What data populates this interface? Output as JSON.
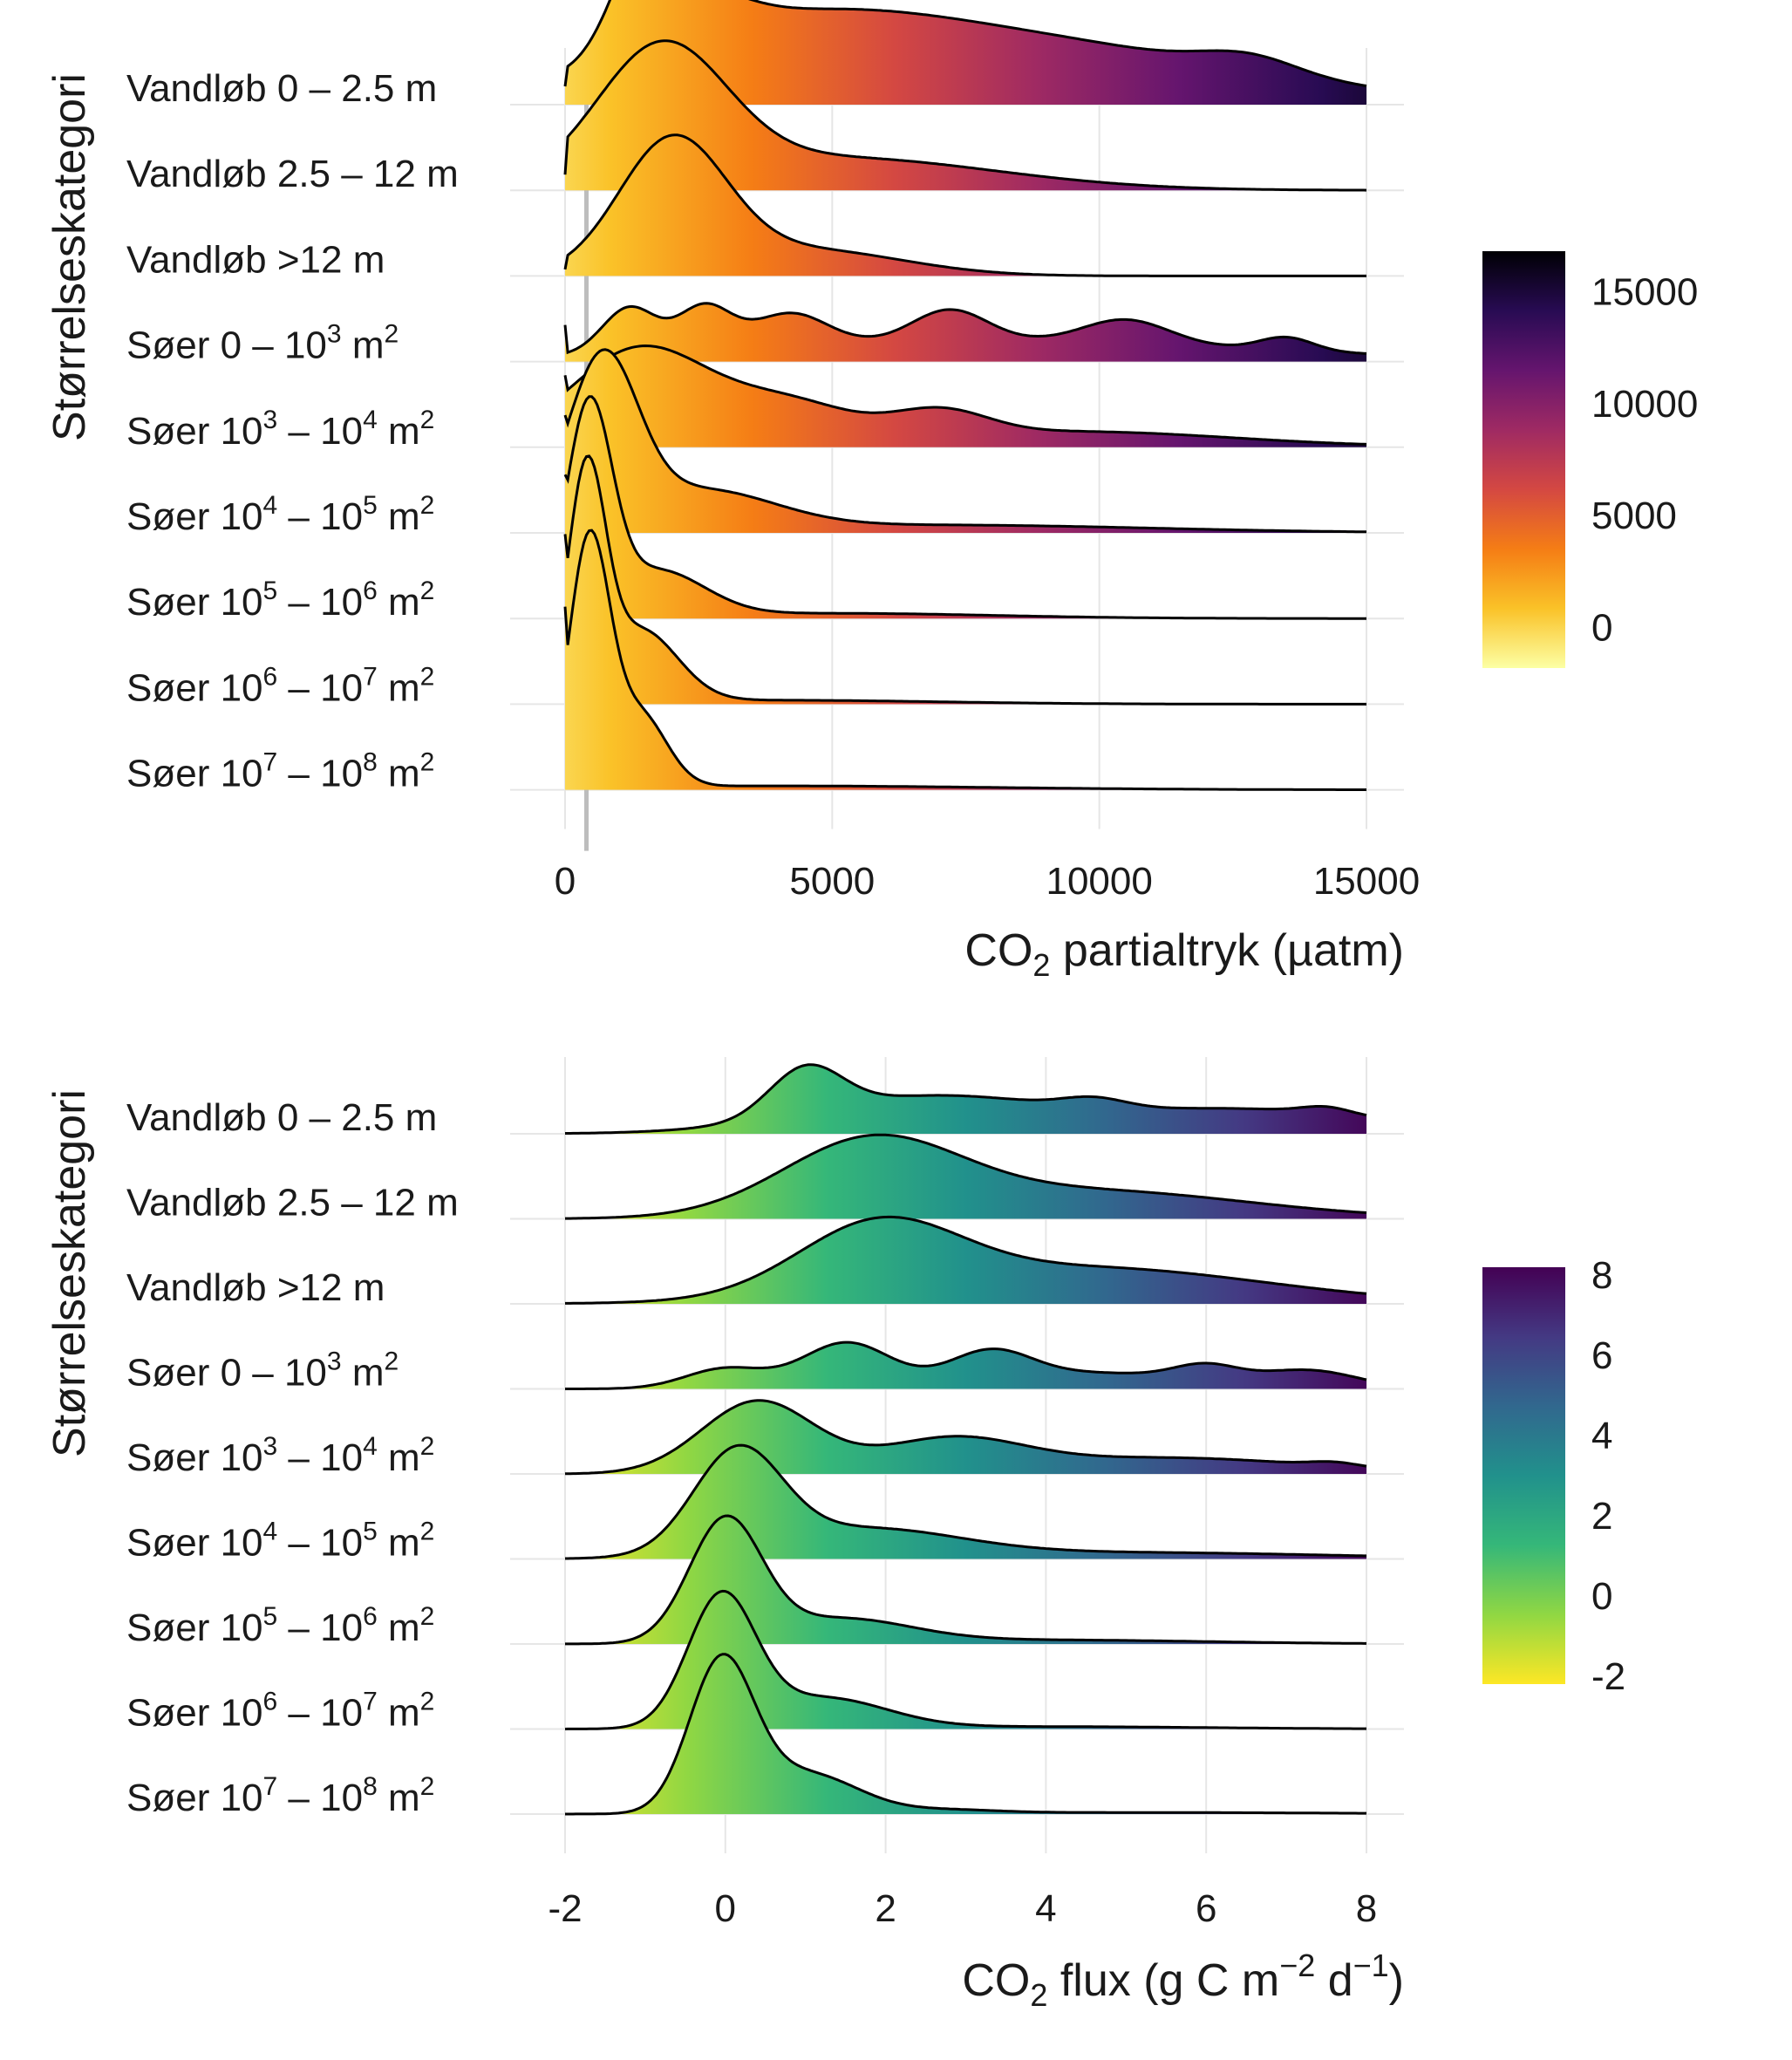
{
  "chart_data": [
    {
      "type": "ridgeline",
      "xlabel": "CO2 partialtryk (µatm)",
      "xlabel_main": "CO",
      "xlabel_sub": "2",
      "xlabel_rest": " partialtryk (µatm)",
      "ylabel": "Størrelseskategori",
      "xlim": [
        0,
        15000
      ],
      "xticks": [
        0,
        5000,
        10000,
        15000
      ],
      "xtick_labels": [
        "0",
        "5000",
        "10000",
        "15000"
      ],
      "vline_x": 400,
      "colorbar": {
        "palette": "inferno",
        "range": [
          -1800,
          16800
        ],
        "ticks": [
          0,
          5000,
          10000,
          15000
        ],
        "tick_labels": [
          "0",
          "5000",
          "10000",
          "15000"
        ],
        "stops": [
          "#fcffa4",
          "#fac228",
          "#f57d15",
          "#d44842",
          "#9f2a63",
          "#65156e",
          "#280b53",
          "#000004"
        ]
      },
      "categories": [
        {
          "base": "Vandløb 0 – 2.5 m",
          "sup1": "",
          "mid": "",
          "sup2": ""
        },
        {
          "base": "Vandløb 2.5 – 12 m",
          "sup1": "",
          "mid": "",
          "sup2": ""
        },
        {
          "base": "Vandløb >12 m",
          "sup1": "",
          "mid": "",
          "sup2": ""
        },
        {
          "base": "Søer 0 – 10",
          "sup1": "3",
          "mid": " m",
          "sup2": "2"
        },
        {
          "base": "Søer 10",
          "sup1": "3",
          "mid": " – 10",
          "sup2": "4",
          "tail": " m",
          "sup3": "2"
        },
        {
          "base": "Søer 10",
          "sup1": "4",
          "mid": " – 10",
          "sup2": "5",
          "tail": " m",
          "sup3": "2"
        },
        {
          "base": "Søer 10",
          "sup1": "5",
          "mid": " – 10",
          "sup2": "6",
          "tail": " m",
          "sup3": "2"
        },
        {
          "base": "Søer 10",
          "sup1": "6",
          "mid": " – 10",
          "sup2": "7",
          "tail": " m",
          "sup3": "2"
        },
        {
          "base": "Søer 10",
          "sup1": "7",
          "mid": " – 10",
          "sup2": "8",
          "tail": " m",
          "sup3": "2"
        }
      ],
      "densities": [
        {
          "bumps": [
            [
              1500,
              600,
              0.72
            ],
            [
              2400,
              900,
              0.3
            ],
            [
              4000,
              3000,
              0.5
            ],
            [
              9000,
              4000,
              0.42
            ],
            [
              12800,
              900,
              0.12
            ]
          ],
          "edge": 0.14
        },
        {
          "bumps": [
            [
              1800,
              1200,
              1.0
            ],
            [
              5000,
              3000,
              0.25
            ]
          ],
          "edge": 0.12
        },
        {
          "bumps": [
            [
              2000,
              1000,
              1.0
            ],
            [
              4500,
              1800,
              0.2
            ]
          ],
          "edge": 0.05
        },
        {
          "bumps": [
            [
              1200,
              500,
              0.35
            ],
            [
              2600,
              500,
              0.33
            ],
            [
              4200,
              700,
              0.25
            ],
            [
              7200,
              700,
              0.24
            ],
            [
              10500,
              800,
              0.18
            ],
            [
              13500,
              500,
              0.1
            ],
            [
              8000,
              5000,
              0.16
            ]
          ],
          "edge": 0.28
        },
        {
          "bumps": [
            [
              1400,
              1300,
              0.75
            ],
            [
              4200,
              1200,
              0.3
            ],
            [
              7000,
              900,
              0.2
            ],
            [
              9500,
              3000,
              0.12
            ]
          ],
          "edge": 0.55
        },
        {
          "bumps": [
            [
              700,
              650,
              1.25
            ],
            [
              2500,
              1400,
              0.3
            ],
            [
              7000,
              4000,
              0.06
            ]
          ],
          "edge": 0.9
        },
        {
          "bumps": [
            [
              450,
              420,
              1.55
            ],
            [
              1700,
              900,
              0.35
            ],
            [
              5000,
              3000,
              0.04
            ]
          ],
          "edge": 1.1
        },
        {
          "bumps": [
            [
              400,
              350,
              1.68
            ],
            [
              1400,
              700,
              0.55
            ],
            [
              4000,
              3000,
              0.03
            ]
          ],
          "edge": 1.3
        },
        {
          "bumps": [
            [
              450,
              380,
              1.87
            ],
            [
              1400,
              500,
              0.55
            ],
            [
              4000,
              4000,
              0.03
            ]
          ],
          "edge": 1.4
        }
      ]
    },
    {
      "type": "ridgeline",
      "xlabel": "CO2 flux (g C m−2 d−1)",
      "xlabel_main": "CO",
      "xlabel_sub": "2",
      "xlabel_mid": " flux (g C m",
      "xlabel_sup1": "−2",
      "xlabel_mid2": " d",
      "xlabel_sup2": "−1",
      "xlabel_end": ")",
      "ylabel": "Størrelseskategori",
      "xlim": [
        -2,
        8
      ],
      "xticks": [
        -2,
        0,
        2,
        4,
        6,
        8
      ],
      "xtick_labels": [
        "-2",
        "0",
        "2",
        "4",
        "6",
        "8"
      ],
      "colorbar": {
        "palette": "viridis",
        "range": [
          -2.2,
          8.2
        ],
        "ticks": [
          -2,
          0,
          2,
          4,
          6,
          8
        ],
        "tick_labels": [
          "-2",
          "0",
          "2",
          "4",
          "6",
          "8"
        ],
        "stops": [
          "#fde725",
          "#90d743",
          "#35b779",
          "#21918c",
          "#31688e",
          "#443983",
          "#440154"
        ]
      },
      "categories": [
        {
          "base": "Vandløb 0 – 2.5 m",
          "sup1": "",
          "mid": "",
          "sup2": ""
        },
        {
          "base": "Vandløb 2.5 – 12 m",
          "sup1": "",
          "mid": "",
          "sup2": ""
        },
        {
          "base": "Vandløb >12 m",
          "sup1": "",
          "mid": "",
          "sup2": ""
        },
        {
          "base": "Søer 0 – 10",
          "sup1": "3",
          "mid": " m",
          "sup2": "2"
        },
        {
          "base": "Søer 10",
          "sup1": "3",
          "mid": " – 10",
          "sup2": "4",
          "tail": " m",
          "sup3": "2"
        },
        {
          "base": "Søer 10",
          "sup1": "4",
          "mid": " – 10",
          "sup2": "5",
          "tail": " m",
          "sup3": "2"
        },
        {
          "base": "Søer 10",
          "sup1": "5",
          "mid": " – 10",
          "sup2": "6",
          "tail": " m",
          "sup3": "2"
        },
        {
          "base": "Søer 10",
          "sup1": "6",
          "mid": " – 10",
          "sup2": "7",
          "tail": " m",
          "sup3": "2"
        },
        {
          "base": "Søer 10",
          "sup1": "7",
          "mid": " – 10",
          "sup2": "8",
          "tail": " m",
          "sup3": "2"
        }
      ],
      "densities": [
        {
          "bumps": [
            [
              1.0,
              0.45,
              0.58
            ],
            [
              2.5,
              1.5,
              0.45
            ],
            [
              4.6,
              0.4,
              0.12
            ],
            [
              6.5,
              1.8,
              0.3
            ],
            [
              7.5,
              0.3,
              0.08
            ]
          ],
          "edge": 0
        },
        {
          "bumps": [
            [
              1.8,
              1.1,
              0.9
            ],
            [
              4.5,
              2.0,
              0.35
            ]
          ],
          "edge": 0
        },
        {
          "bumps": [
            [
              1.9,
              1.0,
              0.85
            ],
            [
              4.5,
              2.2,
              0.45
            ]
          ],
          "edge": 0
        },
        {
          "bumps": [
            [
              0.0,
              0.5,
              0.25
            ],
            [
              1.5,
              0.55,
              0.55
            ],
            [
              3.3,
              0.5,
              0.35
            ],
            [
              4.5,
              1.5,
              0.2
            ],
            [
              6.0,
              0.4,
              0.18
            ],
            [
              7.3,
              0.6,
              0.2
            ]
          ],
          "edge": 0
        },
        {
          "bumps": [
            [
              0.4,
              0.7,
              0.9
            ],
            [
              2.8,
              0.9,
              0.4
            ],
            [
              5.5,
              1.8,
              0.2
            ],
            [
              7.6,
              0.3,
              0.05
            ]
          ],
          "edge": 0
        },
        {
          "bumps": [
            [
              0.15,
              0.55,
              1.25
            ],
            [
              1.7,
              1.2,
              0.35
            ],
            [
              5.0,
              2.5,
              0.08
            ]
          ],
          "edge": 0
        },
        {
          "bumps": [
            [
              0.0,
              0.45,
              1.5
            ],
            [
              1.4,
              0.9,
              0.3
            ],
            [
              4.0,
              2.0,
              0.05
            ]
          ],
          "edge": 0
        },
        {
          "bumps": [
            [
              -0.05,
              0.42,
              1.6
            ],
            [
              1.2,
              0.8,
              0.38
            ],
            [
              4.0,
              2.0,
              0.03
            ]
          ],
          "edge": 0
        },
        {
          "bumps": [
            [
              -0.05,
              0.4,
              1.85
            ],
            [
              1.0,
              0.65,
              0.5
            ],
            [
              2.8,
              0.6,
              0.04
            ],
            [
              5.0,
              2.5,
              0.02
            ]
          ],
          "edge": 0
        }
      ]
    }
  ]
}
